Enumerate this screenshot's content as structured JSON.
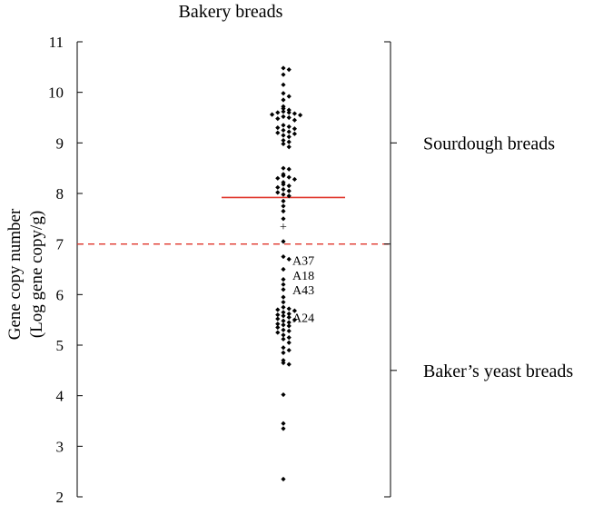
{
  "chart_data": {
    "type": "scatter",
    "title": "Bakery breads",
    "ylabel": [
      "Gene copy number",
      "(Log gene copy/g)"
    ],
    "ylim": [
      2,
      11
    ],
    "yticks": [
      2,
      3,
      4,
      5,
      6,
      7,
      8,
      9,
      10,
      11
    ],
    "threshold": {
      "value": 7,
      "color": "#e0352b",
      "style": "dashed"
    },
    "mean": {
      "value": 7.92,
      "color": "#e0352b"
    },
    "median_marker": {
      "value": 7.35,
      "color": "#e0352b",
      "symbol": "+"
    },
    "groups": [
      {
        "label": "Sourdough breads",
        "range": [
          7,
          11
        ]
      },
      {
        "label": "Baker’s yeast breads",
        "range": [
          2,
          7
        ]
      }
    ],
    "point_color": "#000000",
    "points": [
      10.48,
      10.45,
      10.35,
      10.15,
      9.98,
      9.92,
      9.85,
      9.72,
      9.68,
      9.65,
      9.62,
      9.6,
      9.6,
      9.58,
      9.56,
      9.55,
      9.52,
      9.5,
      9.48,
      9.45,
      9.35,
      9.32,
      9.3,
      9.28,
      9.25,
      9.22,
      9.2,
      9.18,
      9.15,
      9.12,
      9.05,
      9.02,
      8.98,
      8.92,
      8.5,
      8.48,
      8.38,
      8.35,
      8.32,
      8.3,
      8.28,
      8.22,
      8.18,
      8.15,
      8.12,
      8.08,
      8.05,
      8.02,
      7.98,
      7.95,
      7.85,
      7.75,
      7.65,
      7.5,
      7.05,
      6.75,
      6.7,
      6.5,
      6.3,
      6.2,
      6.1,
      5.95,
      5.85,
      5.75,
      5.72,
      5.7,
      5.68,
      5.65,
      5.62,
      5.6,
      5.58,
      5.55,
      5.52,
      5.5,
      5.48,
      5.45,
      5.42,
      5.4,
      5.38,
      5.35,
      5.3,
      5.28,
      5.25,
      5.2,
      5.15,
      5.12,
      5.05,
      4.95,
      4.9,
      4.85,
      4.7,
      4.65,
      4.62,
      4.02,
      3.45,
      3.35,
      2.35
    ],
    "annotations": [
      {
        "text": "A37",
        "y": 6.68
      },
      {
        "text": "A18",
        "y": 6.38
      },
      {
        "text": "A43",
        "y": 6.1
      },
      {
        "text": "A24",
        "y": 5.55
      }
    ]
  }
}
